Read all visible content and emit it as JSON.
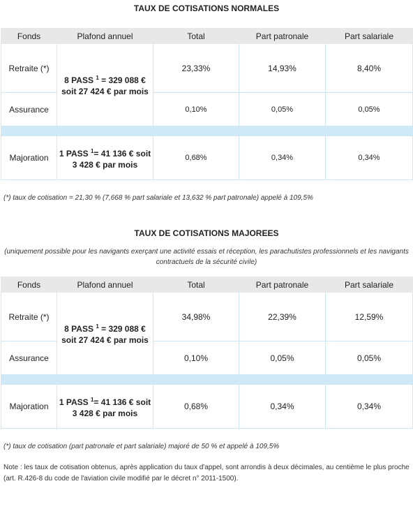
{
  "sections": [
    {
      "title": "TAUX DE COTISATIONS NORMALES",
      "header": [
        "Fonds",
        "Plafond annuel",
        "Total",
        "Part patronale",
        "Part salariale"
      ],
      "rows": [
        [
          "Retraite (*)",
          "23,33%",
          "14,93%",
          "8,40%"
        ],
        [
          "Assurance",
          "0,10%",
          "0,05%",
          "0,05%"
        ],
        [
          "Majoration",
          "0,68%",
          "0,34%",
          "0,34%"
        ]
      ],
      "plafonds": [
        {
          "before": "8 PASS ",
          "sup": "1",
          "after": " = 329 088 € soit 27 424 € par mois"
        },
        {
          "before": "1 PASS ",
          "sup": "1",
          "after": "= 41 136 € soit 3 428 € par mois"
        }
      ],
      "footnote": "(*) taux de cotisation = 21,30 % (7,668 % part salariale et 13,632 % part patronale) appelé à 109,5%"
    },
    {
      "title": "TAUX DE COTISATIONS MAJOREES",
      "subtitle": "(uniquement possible pour les navigants exerçant une activité essais et réception, les parachutistes professionnels et les navigants contractuels de la sécurité civile)",
      "header": [
        "Fonds",
        "Plafond annuel",
        "Total",
        "Part patronale",
        "Part salariale"
      ],
      "rows": [
        [
          "Retraite (*)",
          "34,98%",
          "22,39%",
          "12,59%"
        ],
        [
          "Assurance",
          "0,10%",
          "0,05%",
          "0,05%"
        ],
        [
          "Majoration",
          "0,68%",
          "0,34%",
          "0,34%"
        ]
      ],
      "plafonds": [
        {
          "before": "8 PASS ",
          "sup": "1",
          "after": " = 329 088 € soit 27 424 € par mois"
        },
        {
          "before": "1 PASS ",
          "sup": "1",
          "after": "= 41 136 € soit 3 428 € par mois"
        }
      ],
      "footnote": "(*) taux de cotisation (part patronale et part salariale) majoré de 50 % et appelé à 109,5%"
    }
  ],
  "note": "Note : les taux de cotisation obtenus, après application du taux d'appel, sont arrondis à deux décimales, au centième le plus proche (art. R.426-8 du code de l'aviation civile modifié par le décret n° 2011-1500)."
}
